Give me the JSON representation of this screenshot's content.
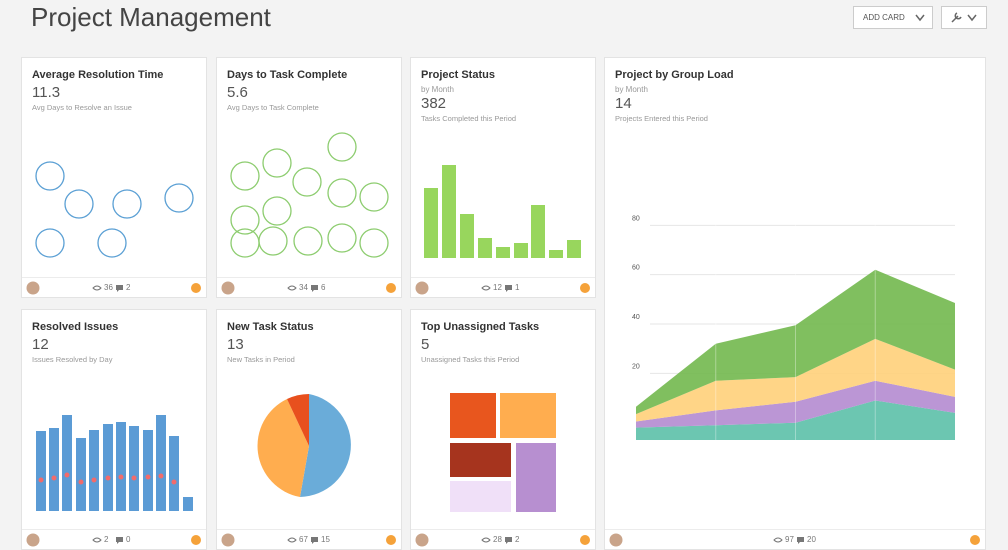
{
  "header": {
    "title": "Project Management",
    "add_card": "ADD CARD"
  },
  "cards": [
    {
      "title": "Average Resolution Time",
      "metric": 11.3,
      "caption": "Avg Days to Resolve an Issue",
      "views": 36,
      "comments": 2
    },
    {
      "title": "Days to Task Complete",
      "metric": 5.6,
      "caption": "Avg Days to Task Complete",
      "views": 34,
      "comments": 6
    },
    {
      "title": "Project Status",
      "by": "by Month",
      "metric": 382,
      "caption": "Tasks Completed this Period",
      "views": 12,
      "comments": 1
    },
    {
      "title": "Project by Group Load",
      "by": "by Month",
      "metric": 14,
      "caption": "Projects Entered this Period",
      "views": 97,
      "comments": 20
    },
    {
      "title": "Resolved Issues",
      "metric": 12,
      "caption": "Issues Resolved by Day",
      "views": 2,
      "comments": 0
    },
    {
      "title": "New Task Status",
      "metric": 13,
      "caption": "New Tasks in Period",
      "views": 67,
      "comments": 15
    },
    {
      "title": "Top Unassigned Tasks",
      "metric": 5,
      "caption": "Unassigned Tasks this Period",
      "views": 28,
      "comments": 2
    }
  ],
  "chart_data": {
    "type": "area",
    "stacked": true,
    "categories": [
      null,
      null,
      null,
      null,
      null
    ],
    "series": [
      {
        "color": "#5cc0a8",
        "values": [
          5,
          6,
          7,
          16,
          11
        ]
      },
      {
        "color": "#b48bd0",
        "values": [
          2.5,
          6,
          8.5,
          8,
          6.5
        ]
      },
      {
        "color": "#ffd07a",
        "values": [
          3,
          12,
          10,
          17,
          11
        ]
      },
      {
        "color": "#72b84e",
        "values": [
          3,
          15,
          21,
          28,
          27
        ]
      }
    ],
    "ylim": [
      -7,
      85
    ],
    "yticks": [
      20,
      40,
      60,
      80
    ],
    "grid": true
  }
}
